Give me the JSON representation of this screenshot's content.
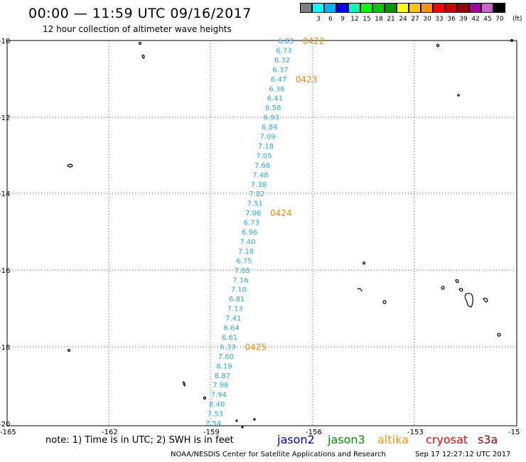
{
  "header": {
    "title": "00:00 — 11:59 UTC 09/16/2017",
    "subtitle": "12 hour collection of altimeter wave heights"
  },
  "scale": {
    "unit": "(ft)",
    "bins": [
      {
        "label": "",
        "color": "#7f7f7f"
      },
      {
        "label": "3",
        "color": "#00ffff"
      },
      {
        "label": "6",
        "color": "#00b4ff"
      },
      {
        "label": "9",
        "color": "#0000ff"
      },
      {
        "label": "12",
        "color": "#00ffb4"
      },
      {
        "label": "15",
        "color": "#00ff00"
      },
      {
        "label": "18",
        "color": "#00c800"
      },
      {
        "label": "21",
        "color": "#009600"
      },
      {
        "label": "24",
        "color": "#ffff00"
      },
      {
        "label": "27",
        "color": "#ffc800"
      },
      {
        "label": "30",
        "color": "#ff9600"
      },
      {
        "label": "33",
        "color": "#ff0000"
      },
      {
        "label": "36",
        "color": "#c80000"
      },
      {
        "label": "39",
        "color": "#960000"
      },
      {
        "label": "42",
        "color": "#a000a0"
      },
      {
        "label": "45",
        "color": "#c864c8"
      },
      {
        "label": "70",
        "color": "#000000"
      }
    ]
  },
  "map": {
    "lat_labels": [
      "-10",
      "-12",
      "-14",
      "-16",
      "-18",
      "-20"
    ],
    "lon_labels": [
      "-165",
      "-162",
      "-159",
      "-156",
      "-153",
      "-15"
    ],
    "swh_color": "#2aa7d8",
    "time_color": "#f08c00",
    "swh_values": [
      "6.83",
      "6.73",
      "6.32",
      "6.37",
      "6.47",
      "6.36",
      "6.41",
      "6.56",
      "6.93",
      "6.84",
      "7.09",
      "7.18",
      "7.05",
      "7.66",
      "7.48",
      "7.38",
      "7.82",
      "7.51",
      "7.06",
      "6.73",
      "6.96",
      "7.40",
      "7.18",
      "6.75",
      "7.05",
      "7.16",
      "7.10",
      "6.81",
      "7.13",
      "7.41",
      "6.64",
      "6.61",
      "6.33",
      "7.60",
      "8.19",
      "8.87",
      "7.98",
      "7.94",
      "8.40",
      "7.53",
      "7.54"
    ],
    "time_labels": [
      {
        "text": "0422",
        "index": 0
      },
      {
        "text": "0423",
        "index": 4
      },
      {
        "text": "0424",
        "index": 18
      },
      {
        "text": "0425",
        "index": 32
      }
    ]
  },
  "footer": {
    "note": "note: 1) Time is in UTC; 2) SWH is in feet",
    "satellites": [
      {
        "name": "jason2",
        "color": "#0000ff"
      },
      {
        "name": "jason3",
        "color": "#009600"
      },
      {
        "name": "altika",
        "color": "#ff9600"
      },
      {
        "name": "cryosat",
        "color": "#ff0000"
      },
      {
        "name": "s3a",
        "color": "#960000"
      }
    ],
    "credit": "NOAA/NESDIS Center for Satellite Applications and Research",
    "timestamp": "Sep 17 12:27:12 UTC 2017"
  }
}
